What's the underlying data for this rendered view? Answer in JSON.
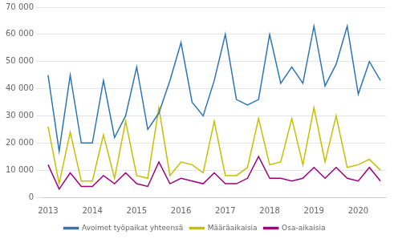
{
  "chart_data": {
    "type": "line",
    "categories": [
      "2013",
      null,
      null,
      null,
      "2014",
      null,
      null,
      null,
      "2015",
      null,
      null,
      null,
      "2016",
      null,
      null,
      null,
      "2017",
      null,
      null,
      null,
      "2018",
      null,
      null,
      null,
      "2019",
      null,
      null,
      null,
      "2020",
      null,
      null
    ],
    "series": [
      {
        "name": "Avoimet työpaikat yhteensä",
        "color": "#2e75b6",
        "values": [
          45000,
          17000,
          45000,
          20000,
          20000,
          43000,
          22000,
          30000,
          48000,
          25000,
          31000,
          43000,
          57000,
          35000,
          30000,
          43000,
          60000,
          36000,
          34000,
          36000,
          60000,
          42000,
          48000,
          42000,
          63000,
          41000,
          49000,
          63000,
          38000,
          50000,
          43000
        ]
      },
      {
        "name": "Määräaikaisia",
        "color": "#c5c000",
        "values": [
          26000,
          5000,
          24000,
          6000,
          6000,
          23000,
          7000,
          28000,
          8000,
          7000,
          33000,
          8000,
          13000,
          12000,
          9000,
          28000,
          8000,
          8000,
          11000,
          29000,
          12000,
          13000,
          29000,
          12000,
          33000,
          13000,
          30000,
          11000,
          12000,
          14000,
          10000
        ]
      },
      {
        "name": "Osa-aikaisia",
        "color": "#9e007e",
        "values": [
          12000,
          3000,
          9000,
          4000,
          4000,
          8000,
          5000,
          9000,
          5000,
          4000,
          13000,
          5000,
          7000,
          6000,
          5000,
          9000,
          5000,
          5000,
          7000,
          15000,
          7000,
          7000,
          6000,
          7000,
          11000,
          7000,
          11000,
          7000,
          6000,
          11000,
          6000
        ]
      }
    ],
    "ylim": [
      0,
      70000
    ],
    "yticks": [
      0,
      {
        "value": 10000,
        "label": "10 000"
      },
      {
        "value": 20000,
        "label": "20 000"
      },
      {
        "value": 30000,
        "label": "30 000"
      },
      {
        "value": 40000,
        "label": "40 000"
      },
      {
        "value": 50000,
        "label": "50 000"
      },
      {
        "value": 60000,
        "label": "60 000"
      },
      {
        "value": 70000,
        "label": "70 000"
      }
    ],
    "grid": true,
    "legend": "bottom"
  }
}
